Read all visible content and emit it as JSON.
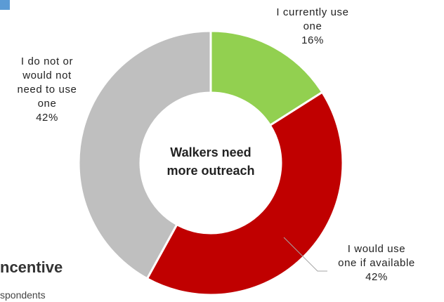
{
  "colors": {
    "corner_square": "#5b9bd5"
  },
  "background_title": "ncentive",
  "background_subtitle": "spondents",
  "chart_data": {
    "type": "pie",
    "donut": true,
    "center_label": [
      "Walkers need",
      "more outreach"
    ],
    "slices": [
      {
        "name": "I currently use one",
        "label_lines": [
          "I currently use",
          "one"
        ],
        "value": 16,
        "value_label": "16%",
        "color": "#92d050"
      },
      {
        "name": "I would use one if available",
        "label_lines": [
          "I would use",
          "one if available"
        ],
        "value": 42,
        "value_label": "42%",
        "color": "#c00000"
      },
      {
        "name": "I do not or would not need to use one",
        "label_lines": [
          "I do not or",
          "would not",
          "need to use",
          "one"
        ],
        "value": 42,
        "value_label": "42%",
        "color": "#bfbfbf"
      }
    ],
    "start_angle_deg": 0,
    "direction": "clockwise",
    "legend": "none"
  }
}
